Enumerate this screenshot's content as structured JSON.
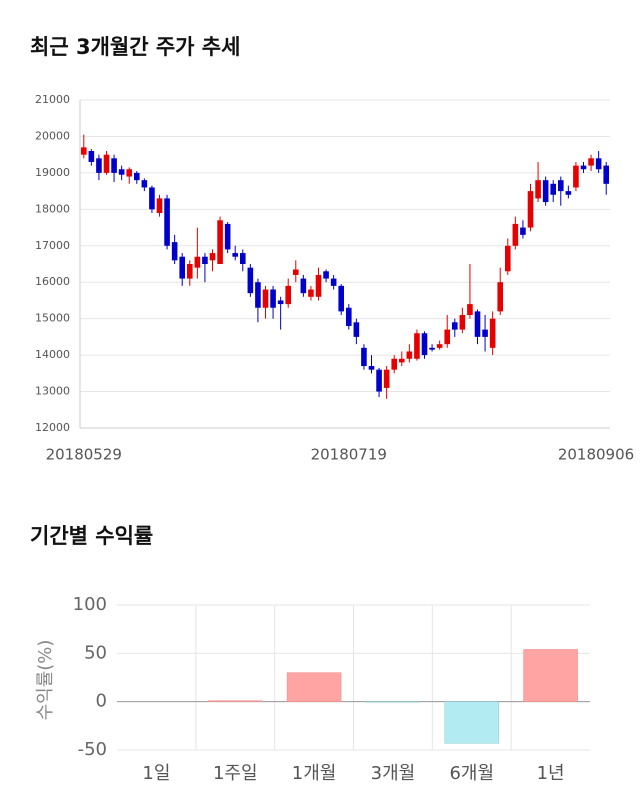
{
  "chart_data": [
    {
      "type": "candlestick",
      "title": "최근 3개월간 주가 추세",
      "categories": [
        "20180529",
        null,
        null,
        null,
        null,
        null,
        null,
        null,
        null,
        null,
        null,
        null,
        null,
        null,
        null,
        null,
        null,
        null,
        null,
        null,
        null,
        null,
        null,
        null,
        null,
        null,
        null,
        null,
        null,
        null,
        null,
        null,
        null,
        null,
        null,
        "20180719",
        null,
        null,
        null,
        null,
        null,
        null,
        null,
        null,
        null,
        null,
        null,
        null,
        null,
        null,
        null,
        null,
        null,
        null,
        null,
        null,
        null,
        null,
        null,
        null,
        null,
        null,
        null,
        null,
        null,
        null,
        null,
        null,
        null,
        "20180906"
      ],
      "open": [
        19500,
        19600,
        19400,
        19000,
        19400,
        19100,
        18900,
        19000,
        18800,
        18600,
        17900,
        18300,
        17100,
        16700,
        16100,
        16400,
        16700,
        16600,
        16500,
        17600,
        16800,
        16800,
        16400,
        16000,
        15300,
        15800,
        15500,
        15400,
        16200,
        16100,
        15600,
        15600,
        16300,
        16100,
        15900,
        15300,
        14900,
        14200,
        13700,
        13600,
        13100,
        13600,
        13800,
        13900,
        13900,
        14600,
        14200,
        14200,
        14300,
        14900,
        14700,
        15100,
        15200,
        14700,
        14200,
        15200,
        16300,
        17000,
        17500,
        17500,
        18300,
        18800,
        18700,
        18800,
        18500,
        18600,
        19200,
        19200,
        19400,
        19200
      ],
      "high": [
        20050,
        19650,
        19500,
        19600,
        19500,
        19200,
        19150,
        19050,
        18850,
        18650,
        18400,
        18400,
        17300,
        16800,
        16600,
        17500,
        16800,
        16900,
        17800,
        17650,
        17000,
        16900,
        16500,
        16100,
        15900,
        15900,
        15600,
        16100,
        16600,
        16200,
        15900,
        16400,
        16350,
        16200,
        15950,
        15400,
        15000,
        14300,
        14000,
        13650,
        13700,
        14000,
        14100,
        14300,
        14700,
        14650,
        14300,
        14400,
        15100,
        15000,
        15300,
        16500,
        15250,
        15100,
        15200,
        16400,
        17200,
        17800,
        17700,
        18700,
        19300,
        18900,
        18800,
        18900,
        18650,
        19300,
        19300,
        19500,
        19600,
        19300
      ],
      "low": [
        19400,
        19200,
        18800,
        18950,
        18750,
        18800,
        18700,
        18700,
        18500,
        17900,
        17800,
        16900,
        16500,
        15900,
        15900,
        16100,
        16000,
        16300,
        16500,
        16800,
        16600,
        16300,
        15600,
        14900,
        15000,
        15000,
        14700,
        15300,
        16000,
        15600,
        15500,
        15500,
        16000,
        15800,
        15100,
        14700,
        14300,
        13600,
        13500,
        12850,
        12800,
        13500,
        13700,
        13800,
        13850,
        13900,
        14100,
        14150,
        14200,
        14500,
        14600,
        15000,
        14300,
        14100,
        14000,
        15100,
        16200,
        16900,
        17200,
        17400,
        18200,
        18100,
        18200,
        18100,
        18300,
        18500,
        19000,
        19050,
        19000,
        18400
      ],
      "close": [
        19700,
        19300,
        19000,
        19500,
        19000,
        18950,
        19100,
        18800,
        18600,
        18000,
        18300,
        17000,
        16600,
        16100,
        16500,
        16700,
        16500,
        16800,
        17700,
        16900,
        16700,
        16500,
        15700,
        15300,
        15800,
        15300,
        15400,
        15900,
        16350,
        15700,
        15800,
        16200,
        16100,
        15900,
        15200,
        14800,
        14500,
        13700,
        13600,
        13000,
        13600,
        13900,
        13900,
        14100,
        14600,
        14000,
        14150,
        14300,
        14700,
        14700,
        15100,
        15400,
        14500,
        14500,
        15000,
        16000,
        17000,
        17600,
        17300,
        18500,
        18800,
        18200,
        18400,
        18500,
        18400,
        19200,
        19100,
        19400,
        19100,
        18700
      ],
      "up_color": "#e60000",
      "down_color": "#0000cc",
      "ylim": [
        12000,
        21000
      ],
      "yticks": [
        12000,
        13000,
        14000,
        15000,
        16000,
        17000,
        18000,
        19000,
        20000,
        21000
      ],
      "grid": true
    },
    {
      "type": "bar",
      "title": "기간별 수익률",
      "y_label": "수익률(%)",
      "categories": [
        "1일",
        "1주일",
        "1개월",
        "3개월",
        "6개월",
        "1년"
      ],
      "values": [
        0,
        1,
        30,
        -0.5,
        -43,
        54
      ],
      "positive_color": "#ffa3a3",
      "negative_color": "#b3ebf2",
      "ylim": [
        -50,
        100
      ],
      "yticks": [
        -50,
        0,
        50,
        100
      ],
      "grid": true
    }
  ]
}
